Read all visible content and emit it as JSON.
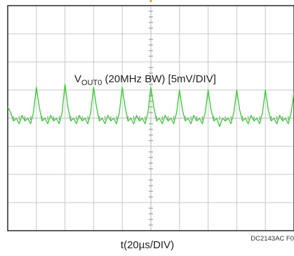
{
  "chart_data": {
    "type": "line",
    "title": "",
    "xlabel": "t(20µs/DIV)",
    "ylabel": "",
    "grid": true,
    "divisions": {
      "x": 10,
      "y": 8
    },
    "xlim": [
      0,
      200
    ],
    "ylim": [
      -20,
      20
    ],
    "x_unit": "µs",
    "y_unit": "mV",
    "trace_color": "#33cc33",
    "series": [
      {
        "label_main": "V",
        "label_sub": "OUT0",
        "label_rest": " (20MHz BW) [5mV/DIV]",
        "x": [
          0,
          2,
          4,
          6,
          8,
          10,
          12,
          14,
          16,
          18,
          20,
          22,
          24,
          26,
          28,
          30,
          32,
          34,
          36,
          38,
          40,
          42,
          44,
          46,
          48,
          50,
          52,
          54,
          56,
          58,
          60,
          62,
          64,
          66,
          68,
          70,
          72,
          74,
          76,
          78,
          80,
          82,
          84,
          86,
          88,
          90,
          92,
          94,
          96,
          98,
          100,
          102,
          104,
          106,
          108,
          110,
          112,
          114,
          116,
          118,
          120,
          122,
          124,
          126,
          128,
          130,
          132,
          134,
          136,
          138,
          140,
          142,
          144,
          146,
          148,
          150,
          152,
          154,
          156,
          158,
          160,
          162,
          164,
          166,
          168,
          170,
          172,
          174,
          176,
          178,
          180,
          182,
          184,
          186,
          188,
          190,
          192,
          194,
          196,
          198,
          200
        ],
        "y": [
          1.5,
          0.5,
          -1.0,
          -0.5,
          -1.5,
          0.0,
          -1.0,
          -0.5,
          -1.5,
          0.5,
          5.0,
          1.5,
          -1.0,
          -0.5,
          -1.5,
          0.0,
          -1.0,
          -0.5,
          -1.5,
          0.5,
          5.5,
          1.5,
          -1.0,
          -0.5,
          -1.5,
          0.0,
          -1.0,
          -0.5,
          -1.5,
          0.5,
          5.0,
          1.5,
          -1.0,
          -0.5,
          -1.5,
          0.0,
          -1.0,
          -0.5,
          -1.5,
          0.5,
          5.0,
          1.5,
          -1.0,
          -0.5,
          -1.5,
          0.0,
          -1.0,
          -0.5,
          -1.5,
          0.5,
          5.0,
          1.5,
          -1.0,
          -0.5,
          -1.5,
          0.0,
          -1.0,
          -0.5,
          -1.5,
          0.5,
          4.5,
          1.0,
          -1.0,
          -0.5,
          -1.5,
          0.0,
          -1.0,
          -0.5,
          -1.5,
          0.5,
          4.5,
          1.0,
          -1.0,
          -0.5,
          -2.0,
          -0.5,
          -1.0,
          -0.5,
          -1.5,
          0.5,
          4.5,
          1.0,
          -1.0,
          -0.5,
          -1.5,
          0.0,
          -1.0,
          -0.5,
          -1.5,
          0.5,
          4.5,
          1.0,
          -1.0,
          -0.5,
          -1.5,
          0.0,
          -1.0,
          -0.5,
          -1.5,
          0.5,
          4.0
        ]
      }
    ]
  },
  "figure_code": "DC2143AC F0"
}
